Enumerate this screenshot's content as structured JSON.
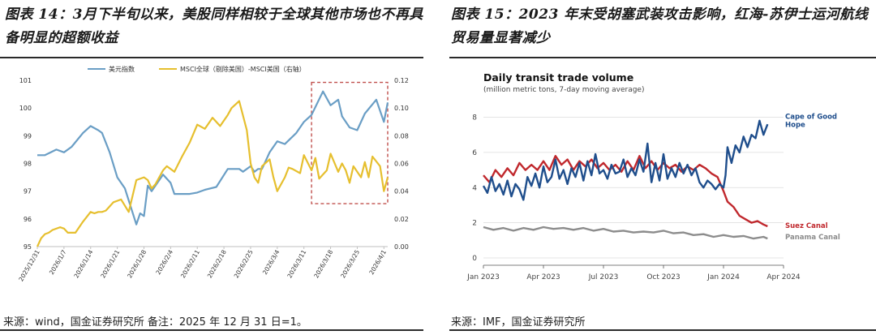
{
  "left": {
    "figure_title": "图表 14：3月下半旬以来，美股同样相较于全球其他市场也不再具备明显的超额收益",
    "source": "来源：wind，国金证券研究所 备注：2025 年 12 月 31 日=1。",
    "highlight_color": "#c0504d",
    "chart_data": {
      "type": "line",
      "legend_placement": "top",
      "grid": false,
      "x_ticks": [
        "2025/12/31",
        "2026/1/7",
        "2026/1/14",
        "2026/1/21",
        "2026/1/28",
        "2026/2/4",
        "2026/2/11",
        "2026/2/18",
        "2026/2/25",
        "2026/3/4",
        "2026/3/11",
        "2026/3/18",
        "2026/3/25",
        "2026/4/1"
      ],
      "y_left_ticks": [
        "95",
        "96",
        "97",
        "98",
        "99",
        "100",
        "101"
      ],
      "y_right_ticks": [
        "0.00",
        "0.02",
        "0.04",
        "0.06",
        "0.08",
        "0.10",
        "0.12"
      ],
      "ylim_left": [
        95,
        101
      ],
      "ylim_right": [
        0,
        0.12
      ],
      "highlight_range": [
        "2026/3/13",
        "2026/4/2"
      ],
      "series": [
        {
          "name": "美元指数",
          "axis": "left",
          "color": "#6a9ec5",
          "x_days": [
            0,
            2,
            5,
            7,
            9,
            12,
            14,
            16,
            17,
            19,
            21,
            23,
            26,
            27,
            28,
            29,
            30,
            33,
            35,
            36,
            37,
            40,
            42,
            44,
            47,
            50,
            53,
            54,
            56,
            57,
            58,
            59,
            61,
            63,
            65,
            68,
            70,
            72,
            75,
            77,
            79,
            80,
            82,
            84,
            86,
            89,
            91,
            92
          ],
          "values": [
            98.3,
            98.3,
            98.5,
            98.4,
            98.6,
            99.1,
            99.35,
            99.2,
            99.1,
            98.4,
            97.5,
            97.1,
            95.8,
            96.2,
            96.1,
            97.2,
            97.0,
            97.6,
            97.3,
            96.9,
            96.9,
            96.9,
            96.95,
            97.05,
            97.15,
            97.8,
            97.8,
            97.7,
            97.9,
            97.7,
            97.8,
            97.8,
            98.4,
            98.8,
            98.7,
            99.1,
            99.5,
            99.75,
            100.6,
            100.1,
            100.3,
            99.7,
            99.3,
            99.2,
            99.8,
            100.3,
            99.5,
            100.2
          ]
        },
        {
          "name": "MSCI全球（剔除美国）-MSCI美国（右轴）",
          "axis": "right",
          "color": "#e6bf2e",
          "x_days": [
            0,
            1,
            2,
            3,
            4,
            6,
            7,
            8,
            10,
            12,
            14,
            15,
            16,
            17,
            18,
            20,
            22,
            24,
            26,
            28,
            29,
            30,
            31,
            33,
            34,
            36,
            38,
            40,
            42,
            44,
            46,
            48,
            50,
            51,
            53,
            55,
            56,
            57,
            58,
            59,
            61,
            62,
            63,
            65,
            66,
            67,
            69,
            70,
            72,
            73,
            74,
            76,
            77,
            79,
            80,
            81,
            82,
            83,
            85,
            86,
            87,
            88,
            90,
            91,
            92
          ],
          "values": [
            0,
            0.006,
            0.009,
            0.01,
            0.012,
            0.014,
            0.013,
            0.01,
            0.01,
            0.018,
            0.025,
            0.024,
            0.025,
            0.025,
            0.026,
            0.032,
            0.034,
            0.025,
            0.048,
            0.05,
            0.048,
            0.042,
            0.045,
            0.055,
            0.058,
            0.054,
            0.065,
            0.075,
            0.088,
            0.085,
            0.093,
            0.087,
            0.095,
            0.1,
            0.105,
            0.084,
            0.06,
            0.05,
            0.046,
            0.058,
            0.063,
            0.05,
            0.04,
            0.05,
            0.057,
            0.056,
            0.053,
            0.066,
            0.055,
            0.064,
            0.049,
            0.055,
            0.067,
            0.054,
            0.06,
            0.055,
            0.046,
            0.058,
            0.05,
            0.061,
            0.05,
            0.065,
            0.058,
            0.04,
            0.05
          ]
        }
      ]
    }
  },
  "right": {
    "figure_title": "图表 15：2023 年末受胡塞武装攻击影响，红海-苏伊士运河航线贸易量显著减少",
    "source": "来源：IMF，国金证券研究所",
    "chart_data": {
      "type": "line",
      "title": "Daily transit trade volume",
      "subtitle": "(million metric tons, 7-day moving average)",
      "grid": true,
      "ylim": [
        0,
        8.3
      ],
      "y_ticks": [
        "0",
        "2",
        "4",
        "6",
        "8"
      ],
      "x_ticks": [
        "Jan 2023",
        "Apr 2023",
        "Jul 2023",
        "Oct 2023",
        "Jan 2024",
        "Apr 2024"
      ],
      "series": [
        {
          "name": "Cape of Good Hope",
          "label_lines": [
            "Cape of Good",
            "Hope"
          ],
          "color": "#1f4e8c",
          "x_months": [
            0,
            0.2,
            0.4,
            0.6,
            0.8,
            1,
            1.2,
            1.4,
            1.6,
            1.8,
            2,
            2.2,
            2.4,
            2.6,
            2.8,
            3,
            3.2,
            3.4,
            3.6,
            3.8,
            4,
            4.2,
            4.4,
            4.6,
            4.8,
            5,
            5.2,
            5.4,
            5.6,
            5.8,
            6,
            6.2,
            6.4,
            6.6,
            6.8,
            7,
            7.2,
            7.4,
            7.6,
            7.8,
            8,
            8.2,
            8.4,
            8.6,
            8.8,
            9,
            9.2,
            9.4,
            9.6,
            9.8,
            10,
            10.2,
            10.4,
            10.6,
            10.8,
            11,
            11.2,
            11.4,
            11.6,
            11.8,
            12,
            12.1,
            12.2,
            12.4,
            12.6,
            12.8,
            13,
            13.2,
            13.4,
            13.6,
            13.8,
            14,
            14.2
          ],
          "values": [
            4.1,
            3.7,
            4.6,
            3.8,
            4.2,
            3.6,
            4.4,
            3.5,
            4.2,
            3.9,
            3.3,
            4.6,
            4.1,
            4.8,
            4.0,
            5.2,
            4.3,
            4.6,
            5.6,
            4.5,
            5.0,
            4.2,
            5.1,
            4.6,
            5.4,
            4.4,
            5.5,
            4.7,
            5.9,
            4.8,
            5.0,
            4.5,
            5.3,
            4.8,
            4.9,
            5.6,
            4.6,
            5.1,
            4.7,
            5.6,
            4.9,
            6.5,
            4.3,
            5.4,
            4.4,
            5.9,
            4.5,
            5.1,
            4.6,
            5.4,
            4.8,
            5.3,
            4.7,
            5.1,
            4.3,
            4.0,
            4.4,
            4.2,
            3.9,
            4.2,
            4.0,
            4.7,
            6.3,
            5.4,
            6.4,
            6.0,
            6.9,
            6.3,
            7.0,
            6.8,
            7.8,
            7.0,
            7.6
          ]
        },
        {
          "name": "Suez Canal",
          "label_lines": [
            "Suez Canal"
          ],
          "color": "#c0282d",
          "x_months": [
            0,
            0.3,
            0.6,
            0.9,
            1.2,
            1.5,
            1.8,
            2.1,
            2.4,
            2.7,
            3,
            3.3,
            3.6,
            3.9,
            4.2,
            4.5,
            4.8,
            5.1,
            5.4,
            5.7,
            6,
            6.3,
            6.6,
            6.9,
            7.2,
            7.5,
            7.8,
            8.1,
            8.4,
            8.7,
            9,
            9.3,
            9.6,
            9.9,
            10.2,
            10.5,
            10.8,
            11.1,
            11.4,
            11.7,
            12,
            12.2,
            12.5,
            12.8,
            13.1,
            13.4,
            13.7,
            14,
            14.2
          ],
          "values": [
            4.7,
            4.3,
            5.0,
            4.6,
            5.1,
            4.7,
            5.4,
            5.0,
            5.3,
            5.0,
            5.5,
            5.0,
            5.8,
            5.3,
            5.6,
            5.0,
            5.5,
            5.2,
            5.6,
            5.1,
            5.4,
            5.0,
            5.3,
            4.9,
            5.5,
            5.0,
            5.8,
            5.1,
            5.5,
            5.0,
            5.4,
            5.1,
            5.3,
            4.9,
            5.2,
            5.0,
            5.3,
            5.1,
            4.8,
            4.6,
            3.8,
            3.2,
            2.9,
            2.4,
            2.2,
            2.0,
            2.1,
            1.9,
            1.8
          ]
        },
        {
          "name": "Panama Canal",
          "label_lines": [
            "Panama Canal"
          ],
          "color": "#8c8c8c",
          "x_months": [
            0,
            0.5,
            1,
            1.5,
            2,
            2.5,
            3,
            3.5,
            4,
            4.5,
            5,
            5.5,
            6,
            6.5,
            7,
            7.5,
            8,
            8.5,
            9,
            9.5,
            10,
            10.5,
            11,
            11.5,
            12,
            12.5,
            13,
            13.5,
            14,
            14.2
          ],
          "values": [
            1.75,
            1.6,
            1.7,
            1.55,
            1.7,
            1.6,
            1.75,
            1.65,
            1.7,
            1.6,
            1.7,
            1.55,
            1.65,
            1.5,
            1.55,
            1.45,
            1.5,
            1.45,
            1.55,
            1.4,
            1.45,
            1.3,
            1.35,
            1.2,
            1.3,
            1.2,
            1.25,
            1.1,
            1.2,
            1.1
          ]
        }
      ]
    }
  }
}
